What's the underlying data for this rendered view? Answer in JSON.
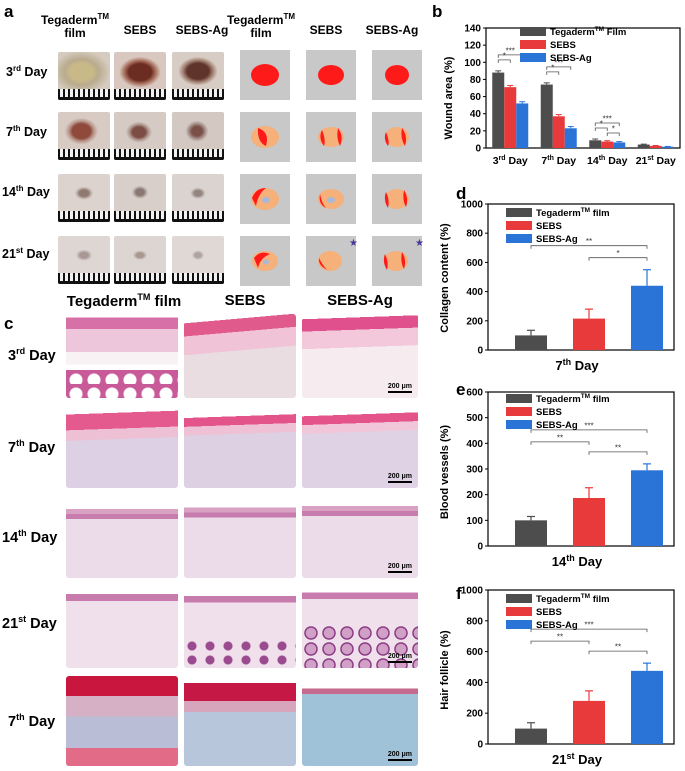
{
  "panel_labels": {
    "a": "a",
    "b": "b",
    "c": "c",
    "d": "d",
    "e": "e",
    "f": "f"
  },
  "panel_a": {
    "column_headers": [
      {
        "main": "Tegaderm",
        "sup": "TM",
        "sub": "film"
      },
      {
        "main": "SEBS"
      },
      {
        "main": "SEBS-Ag"
      },
      {
        "main": "Tegaderm",
        "sup": "TM",
        "sub": "film"
      },
      {
        "main": "SEBS"
      },
      {
        "main": "SEBS-Ag"
      }
    ],
    "row_headers": [
      {
        "n": "3",
        "sup": "rd",
        "rest": " Day"
      },
      {
        "n": "7",
        "sup": "th",
        "rest": " Day"
      },
      {
        "n": "14",
        "sup": "th",
        "rest": " Day"
      },
      {
        "n": "21",
        "sup": "st",
        "rest": " Day"
      }
    ]
  },
  "panel_c": {
    "column_headers": [
      {
        "main": "Tegaderm",
        "sup": "TM",
        "rest": " film"
      },
      {
        "main": "SEBS"
      },
      {
        "main": "SEBS-Ag"
      }
    ],
    "row_headers": [
      {
        "n": "3",
        "sup": "rd",
        "rest": " Day"
      },
      {
        "n": "7",
        "sup": "th",
        "rest": " Day"
      },
      {
        "n": "14",
        "sup": "th",
        "rest": " Day"
      },
      {
        "n": "21",
        "sup": "st",
        "rest": " Day"
      },
      {
        "n": "7",
        "sup": "th",
        "rest": " Day"
      }
    ],
    "scale_bar": "200 μm"
  },
  "colors": {
    "tegaderm": "#4d4d4d",
    "sebs": "#e83a3a",
    "sebs_ag": "#2a74d8",
    "wound": "#ff1a1a",
    "healed": "#f6b07a",
    "schematic_bg": "#c8c8c8"
  },
  "chart_data": [
    {
      "panel": "b",
      "type": "bar",
      "ylabel": "Wound area (%)",
      "ylim": [
        0,
        140
      ],
      "yticks": [
        0,
        20,
        40,
        60,
        80,
        100,
        120,
        140
      ],
      "categories": [
        {
          "n": "3",
          "sup": "rd",
          "rest": " Day"
        },
        {
          "n": "7",
          "sup": "th",
          "rest": " Day"
        },
        {
          "n": "14",
          "sup": "th",
          "rest": " Day"
        },
        {
          "n": "21",
          "sup": "st",
          "rest": " Day"
        }
      ],
      "legend": [
        {
          "main": "Tegaderm",
          "sup": "TM",
          "rest": " Film"
        },
        {
          "main": "SEBS"
        },
        {
          "main": "SEBS-Ag"
        }
      ],
      "series": [
        {
          "values": [
            88,
            74,
            9,
            4
          ],
          "errors": [
            2,
            2,
            1.5,
            0.5
          ]
        },
        {
          "values": [
            71,
            37,
            7.5,
            2.5
          ],
          "errors": [
            2,
            2,
            1,
            0.4
          ]
        },
        {
          "values": [
            52,
            23,
            6.5,
            1.5
          ],
          "errors": [
            2,
            2,
            1,
            0.3
          ]
        }
      ],
      "significance": [
        {
          "label": "***",
          "group": 0,
          "from": 0,
          "to": 2
        },
        {
          "label": "*",
          "group": 0,
          "from": 0,
          "to": 1
        },
        {
          "label": "***",
          "group": 1,
          "from": 0,
          "to": 2
        },
        {
          "label": "*",
          "group": 1,
          "from": 0,
          "to": 1
        },
        {
          "label": "***",
          "group": 2,
          "from": 0,
          "to": 2
        },
        {
          "label": "*",
          "group": 2,
          "from": 0,
          "to": 1
        },
        {
          "label": "*",
          "group": 2,
          "from": 1,
          "to": 2
        }
      ]
    },
    {
      "panel": "d",
      "type": "bar",
      "ylabel": "Collagen content (%)",
      "ylim": [
        0,
        1000
      ],
      "yticks": [
        0,
        200,
        400,
        600,
        800,
        1000
      ],
      "xlabel": {
        "n": "7",
        "sup": "th",
        "rest": " Day"
      },
      "legend": [
        {
          "main": "Tegaderm",
          "sup": "TM",
          "rest": " film"
        },
        {
          "main": "SEBS"
        },
        {
          "main": "SEBS-Ag"
        }
      ],
      "values": [
        100,
        215,
        440
      ],
      "errors": [
        35,
        65,
        110
      ],
      "significance": [
        {
          "label": "**",
          "from": 0,
          "to": 2
        },
        {
          "label": "*",
          "from": 1,
          "to": 2
        }
      ]
    },
    {
      "panel": "e",
      "type": "bar",
      "ylabel": "Blood vessels (%)",
      "ylim": [
        0,
        600
      ],
      "yticks": [
        0,
        100,
        200,
        300,
        400,
        500,
        600
      ],
      "xlabel": {
        "n": "14",
        "sup": "th",
        "rest": " Day"
      },
      "legend": [
        {
          "main": "Tegaderm",
          "sup": "TM",
          "rest": " film"
        },
        {
          "main": "SEBS"
        },
        {
          "main": "SEBS-Ag"
        }
      ],
      "values": [
        100,
        187,
        295
      ],
      "errors": [
        15,
        40,
        25
      ],
      "significance": [
        {
          "label": "***",
          "from": 0,
          "to": 2
        },
        {
          "label": "**",
          "from": 0,
          "to": 1
        },
        {
          "label": "**",
          "from": 1,
          "to": 2
        }
      ]
    },
    {
      "panel": "f",
      "type": "bar",
      "ylabel": "Hair follicle (%)",
      "ylim": [
        0,
        1000
      ],
      "yticks": [
        0,
        200,
        400,
        600,
        800,
        1000
      ],
      "xlabel": {
        "n": "21",
        "sup": "st",
        "rest": " Day"
      },
      "legend": [
        {
          "main": "Tegaderm",
          "sup": "TM",
          "rest": " film"
        },
        {
          "main": "SEBS"
        },
        {
          "main": "SEBS-Ag"
        }
      ],
      "values": [
        100,
        280,
        475
      ],
      "errors": [
        38,
        65,
        50
      ],
      "significance": [
        {
          "label": "***",
          "from": 0,
          "to": 2
        },
        {
          "label": "**",
          "from": 0,
          "to": 1
        },
        {
          "label": "**",
          "from": 1,
          "to": 2
        }
      ]
    }
  ]
}
